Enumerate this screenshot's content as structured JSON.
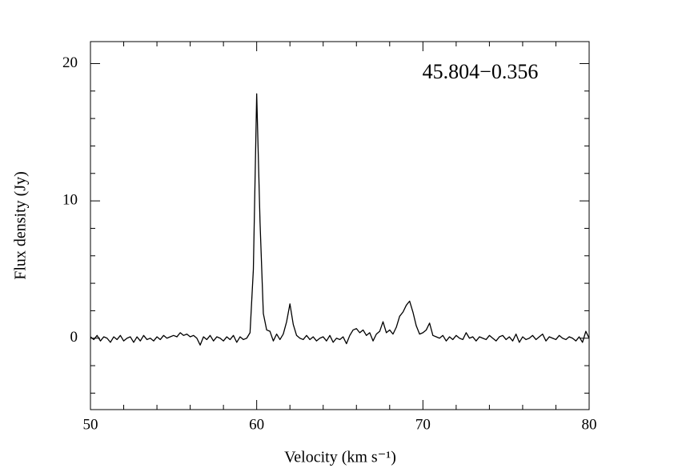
{
  "chart_data": {
    "type": "line",
    "annotation": "45.804−0.356",
    "x_label": "Velocity (km s⁻¹)",
    "y_label": "Flux density (Jy)",
    "xlim": [
      50,
      80
    ],
    "xticks": [
      50,
      60,
      70,
      80
    ],
    "xticks_minor": [
      52,
      54,
      56,
      58,
      62,
      64,
      66,
      68,
      72,
      74,
      76,
      78
    ],
    "ylim": [
      -5.2,
      21.6
    ],
    "yticks": [
      0,
      10,
      20
    ],
    "yticks_minor": [
      -4,
      -2,
      2,
      4,
      6,
      8,
      12,
      14,
      16,
      18
    ],
    "series": [
      {
        "color": "#000000",
        "x": [
          50.0,
          50.2,
          50.4,
          50.6,
          50.8,
          51.0,
          51.2,
          51.4,
          51.6,
          51.8,
          52.0,
          52.2,
          52.4,
          52.6,
          52.8,
          53.0,
          53.2,
          53.4,
          53.6,
          53.8,
          54.0,
          54.2,
          54.4,
          54.6,
          54.8,
          55.0,
          55.2,
          55.4,
          55.6,
          55.8,
          56.0,
          56.2,
          56.4,
          56.6,
          56.8,
          57.0,
          57.2,
          57.4,
          57.6,
          57.8,
          58.0,
          58.2,
          58.4,
          58.6,
          58.8,
          59.0,
          59.2,
          59.4,
          59.6,
          59.8,
          60.0,
          60.2,
          60.4,
          60.6,
          60.8,
          61.0,
          61.2,
          61.4,
          61.6,
          61.8,
          62.0,
          62.2,
          62.4,
          62.6,
          62.8,
          63.0,
          63.2,
          63.4,
          63.6,
          63.8,
          64.0,
          64.2,
          64.4,
          64.6,
          64.8,
          65.0,
          65.2,
          65.4,
          65.6,
          65.8,
          66.0,
          66.2,
          66.4,
          66.6,
          66.8,
          67.0,
          67.2,
          67.4,
          67.6,
          67.8,
          68.0,
          68.2,
          68.4,
          68.6,
          68.8,
          69.0,
          69.2,
          69.4,
          69.6,
          69.8,
          70.0,
          70.2,
          70.4,
          70.6,
          70.8,
          71.0,
          71.2,
          71.4,
          71.6,
          71.8,
          72.0,
          72.2,
          72.4,
          72.6,
          72.8,
          73.0,
          73.2,
          73.4,
          73.6,
          73.8,
          74.0,
          74.2,
          74.4,
          74.6,
          74.8,
          75.0,
          75.2,
          75.4,
          75.6,
          75.8,
          76.0,
          76.2,
          76.4,
          76.6,
          76.8,
          77.0,
          77.2,
          77.4,
          77.6,
          77.8,
          78.0,
          78.2,
          78.4,
          78.6,
          78.8,
          79.0,
          79.2,
          79.4,
          79.6,
          79.8,
          80.0
        ],
        "values": [
          0.1,
          -0.1,
          0.2,
          -0.2,
          0.1,
          0.0,
          -0.3,
          0.1,
          -0.1,
          0.2,
          -0.2,
          0.0,
          0.1,
          -0.3,
          0.1,
          -0.2,
          0.2,
          -0.1,
          0.0,
          -0.2,
          0.1,
          -0.1,
          0.2,
          0.0,
          0.1,
          0.2,
          0.1,
          0.4,
          0.2,
          0.3,
          0.1,
          0.2,
          0.0,
          -0.5,
          0.1,
          -0.1,
          0.2,
          -0.2,
          0.1,
          0.0,
          -0.2,
          0.1,
          -0.1,
          0.2,
          -0.3,
          0.1,
          -0.1,
          0.0,
          0.4,
          5.0,
          17.8,
          8.5,
          1.8,
          0.6,
          0.5,
          -0.2,
          0.3,
          -0.1,
          0.3,
          1.2,
          2.5,
          1.0,
          0.2,
          0.0,
          -0.1,
          0.2,
          -0.1,
          0.1,
          -0.2,
          0.0,
          0.1,
          -0.2,
          0.2,
          -0.3,
          0.0,
          -0.1,
          0.1,
          -0.4,
          0.2,
          0.6,
          0.7,
          0.4,
          0.6,
          0.2,
          0.4,
          -0.2,
          0.3,
          0.5,
          1.2,
          0.4,
          0.6,
          0.3,
          0.8,
          1.6,
          1.9,
          2.4,
          2.7,
          1.9,
          0.9,
          0.3,
          0.4,
          0.6,
          1.1,
          0.2,
          0.1,
          0.0,
          0.2,
          -0.2,
          0.1,
          -0.1,
          0.2,
          0.0,
          -0.1,
          0.4,
          0.0,
          0.1,
          -0.2,
          0.1,
          0.0,
          -0.1,
          0.2,
          0.0,
          -0.2,
          0.1,
          0.2,
          -0.1,
          0.1,
          -0.2,
          0.3,
          -0.3,
          0.1,
          -0.1,
          0.0,
          0.2,
          -0.1,
          0.1,
          0.3,
          -0.2,
          0.1,
          0.0,
          -0.1,
          0.2,
          0.0,
          -0.1,
          0.1,
          0.0,
          -0.2,
          0.1,
          -0.3,
          0.5,
          0.0
        ]
      }
    ]
  }
}
